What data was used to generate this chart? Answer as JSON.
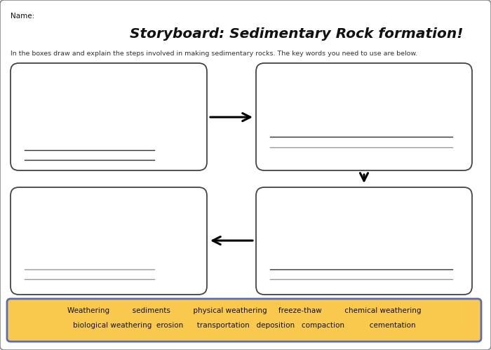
{
  "title": "Storyboard: Sedimentary Rock formation!",
  "name_label": "Name:",
  "subtitle": "In the boxes draw and explain the steps involved in making sedimentary rocks. The key words you need to use are below.",
  "keyword_line1": "Weathering          sediments          physical weathering     freeze-thaw          chemical weathering",
  "keyword_line2": "biological weathering  erosion      transportation   deposition   compaction           cementation",
  "bg_color": "#ffffff",
  "keyword_bg": "#f9c94e",
  "keyword_border": "#5b6abf",
  "title_color": "#111111",
  "subtitle_color": "#333333",
  "line_color_dark": "#333333",
  "line_color_light": "#999999",
  "box_edge": "#444444",
  "outer_edge": "#888888"
}
